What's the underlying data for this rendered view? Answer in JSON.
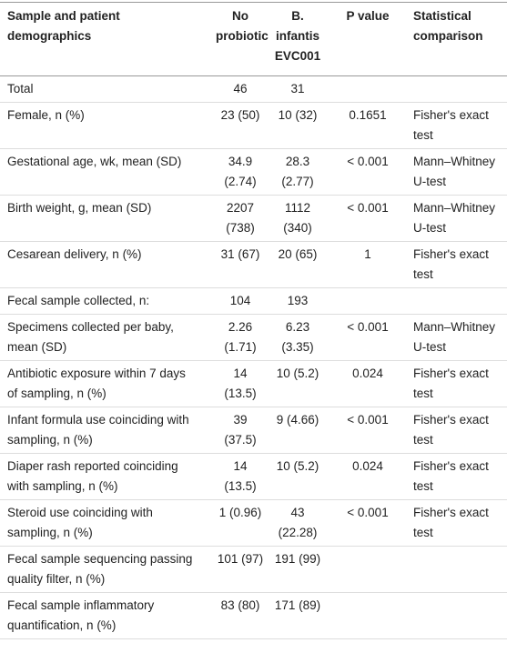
{
  "table": {
    "header": [
      "Sample and patient demographics",
      "No probiotic",
      "B. infantis EVC001",
      "P value",
      "Statistical comparison"
    ],
    "rows": [
      [
        "Total",
        "46",
        "31",
        "",
        ""
      ],
      [
        "Female, n (%)",
        "23 (50)",
        "10 (32)",
        "0.1651",
        "Fisher's exact test"
      ],
      [
        "Gestational age, wk, mean (SD)",
        "34.9 (2.74)",
        "28.3 (2.77)",
        "< 0.001",
        "Mann–Whitney U-test"
      ],
      [
        "Birth weight, g, mean (SD)",
        "2207 (738)",
        "1112 (340)",
        "< 0.001",
        "Mann–Whitney U-test"
      ],
      [
        "Cesarean delivery, n (%)",
        "31 (67)",
        "20 (65)",
        "1",
        "Fisher's exact test"
      ],
      [
        "Fecal sample collected, n:",
        "104",
        "193",
        "",
        ""
      ],
      [
        "Specimens collected per baby, mean (SD)",
        "2.26 (1.71)",
        "6.23 (3.35)",
        "< 0.001",
        "Mann–Whitney U-test"
      ],
      [
        "Antibiotic exposure within 7 days of sampling, n (%)",
        "14 (13.5)",
        "10 (5.2)",
        "0.024",
        "Fisher's exact test"
      ],
      [
        "Infant formula use coinciding with sampling, n (%)",
        "39 (37.5)",
        "9 (4.66)",
        "< 0.001",
        "Fisher's exact test"
      ],
      [
        "Diaper rash reported coinciding with sampling, n (%)",
        "14 (13.5)",
        "10 (5.2)",
        "0.024",
        "Fisher's exact test"
      ],
      [
        "Steroid use coinciding with sampling, n (%)",
        "1 (0.96)",
        "43 (22.28)",
        "< 0.001",
        "Fisher's exact test"
      ],
      [
        "Fecal sample sequencing passing quality filter, n (%)",
        "101 (97)",
        "191 (99)",
        "",
        ""
      ],
      [
        "Fecal sample inflammatory quantification, n (%)",
        "83 (80)",
        "171 (89)",
        "",
        ""
      ]
    ]
  }
}
